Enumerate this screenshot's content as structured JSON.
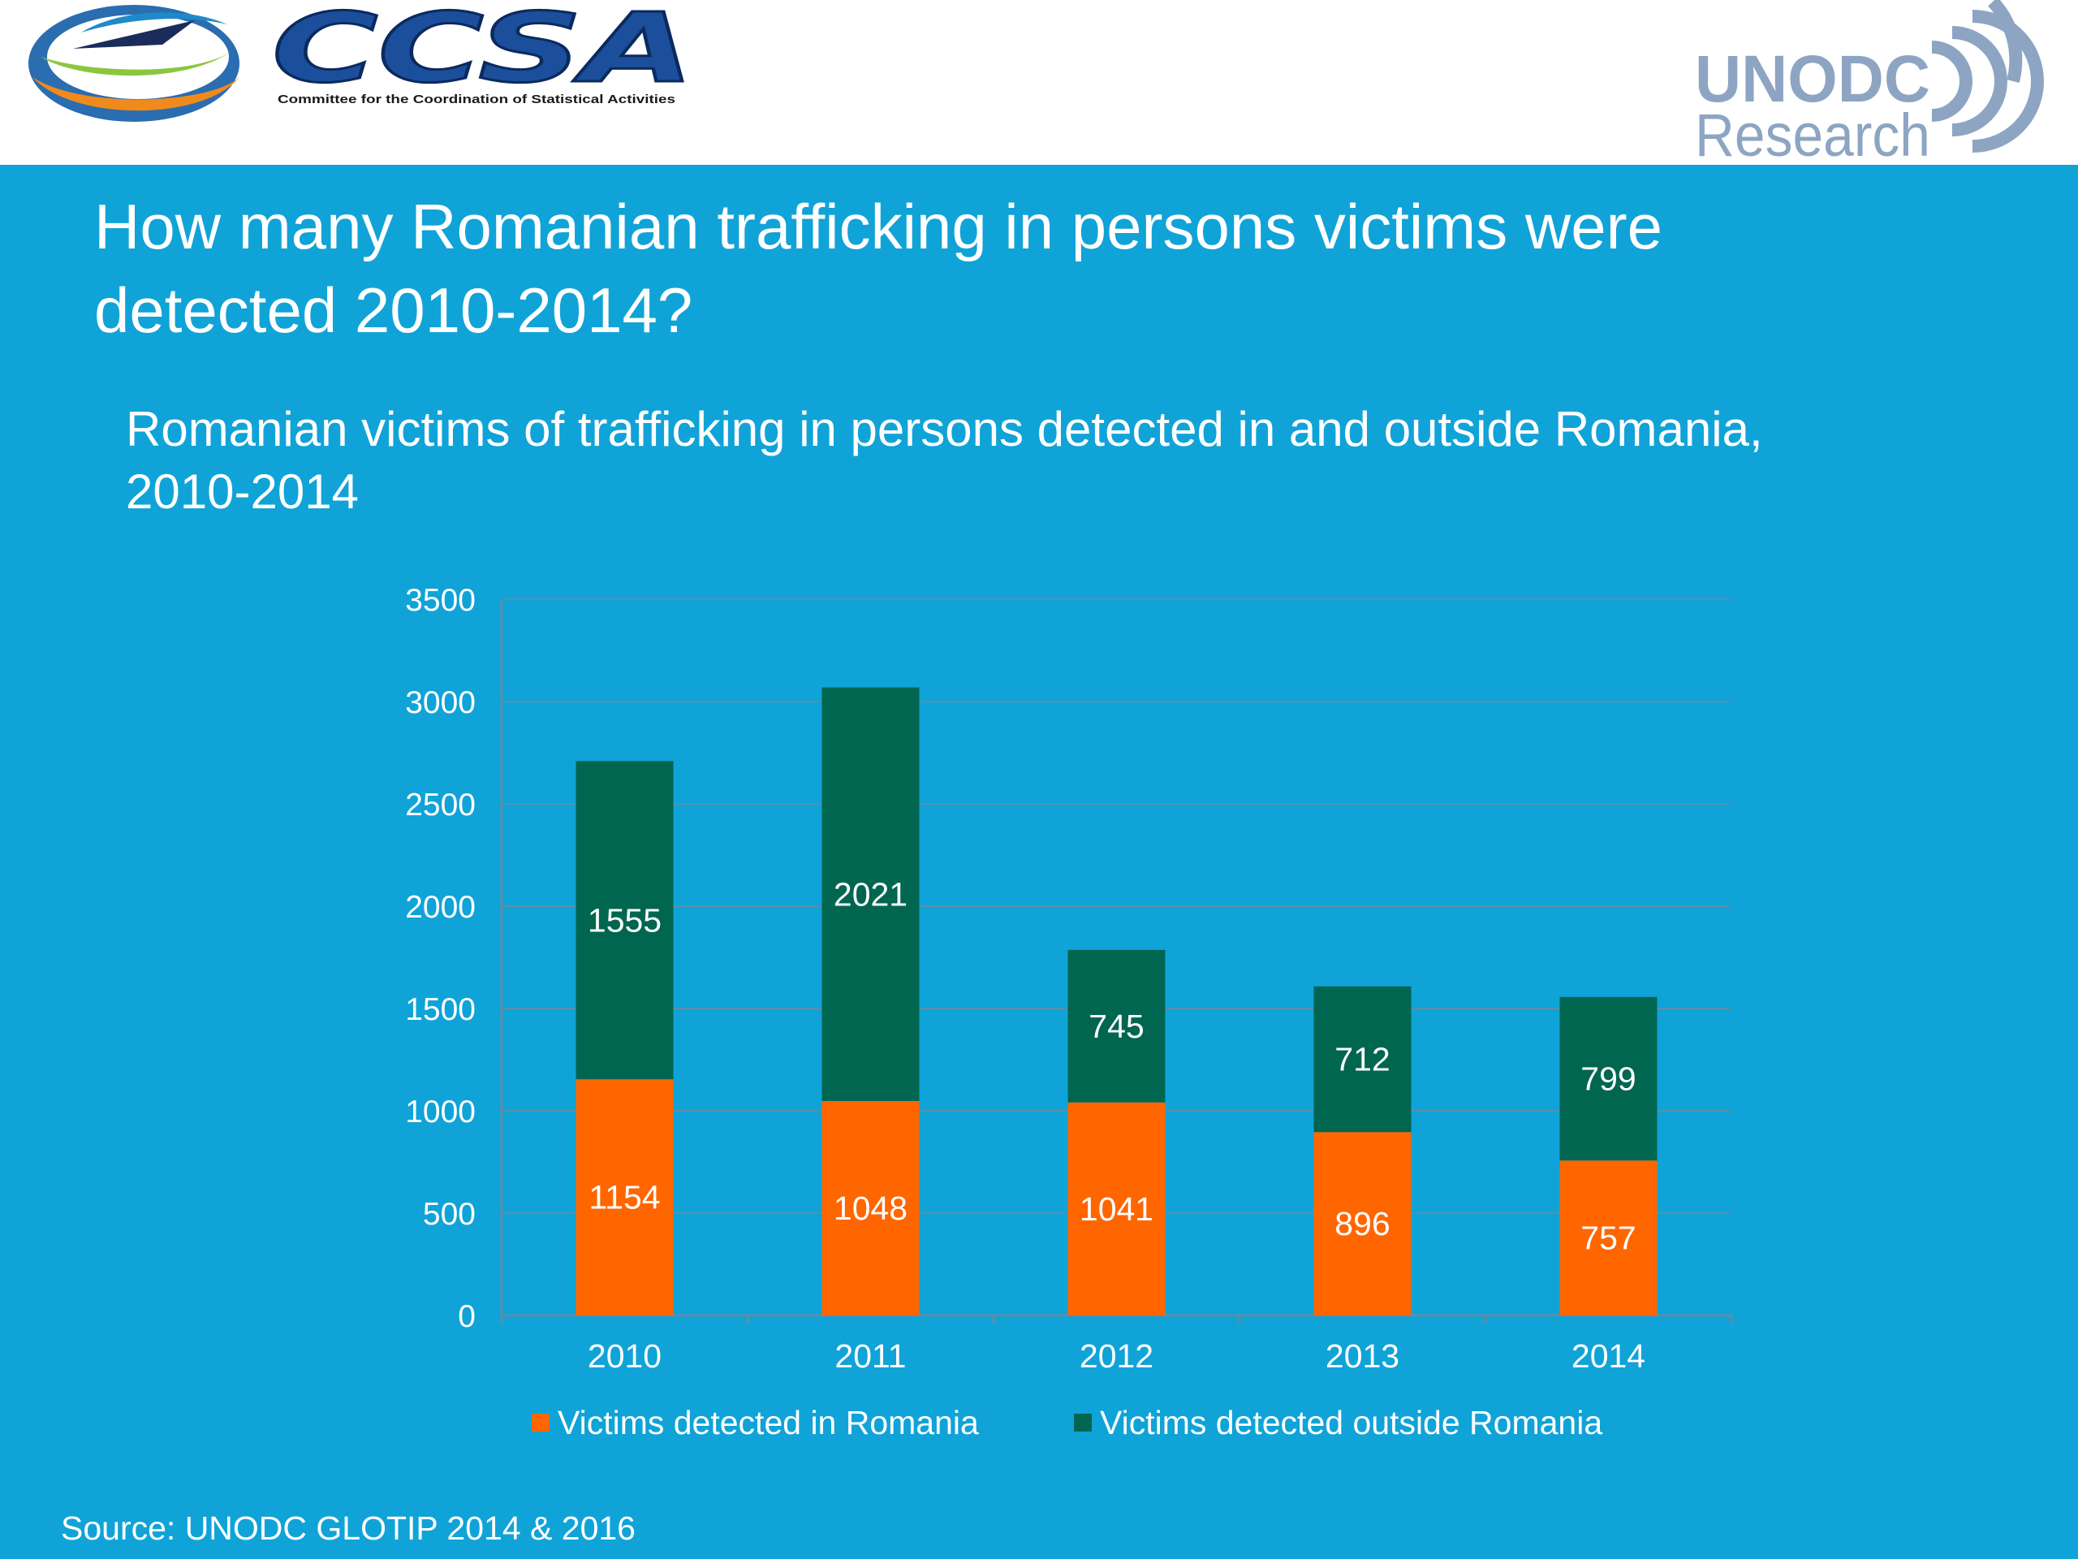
{
  "header": {
    "ccsa_logo": {
      "wordmark": "CCSA",
      "tagline": "Committee for the Coordination of Statistical Activities"
    },
    "unodc_logo": {
      "line1": "UNODC",
      "line2": "Research"
    }
  },
  "slide_title": "How many Romanian trafficking in persons victims were\ndetected 2010-2014?",
  "source_note": "Source: UNODC GLOTIP 2014 & 2016",
  "colors": {
    "background": "#10a3d8",
    "series_in": "#ff6600",
    "series_outside": "#006650",
    "gridline": "#5c8ea8",
    "text": "#ffffff"
  },
  "chart_data": {
    "type": "bar",
    "stacked": true,
    "title": "Romanian victims of trafficking in persons detected in and outside Romania,\n2010-2014",
    "xlabel": "",
    "ylabel": "",
    "categories": [
      "2010",
      "2011",
      "2012",
      "2013",
      "2014"
    ],
    "ylim": [
      0,
      3500
    ],
    "yticks": [
      0,
      500,
      1000,
      1500,
      2000,
      2500,
      3000,
      3500
    ],
    "grid": true,
    "legend_position": "bottom",
    "series": [
      {
        "name": "Victims detected in Romania",
        "color": "#ff6600",
        "values": [
          1154,
          1048,
          1041,
          896,
          757
        ]
      },
      {
        "name": "Victims detected outside Romania",
        "color": "#006650",
        "values": [
          1555,
          2021,
          745,
          712,
          799
        ]
      }
    ]
  }
}
